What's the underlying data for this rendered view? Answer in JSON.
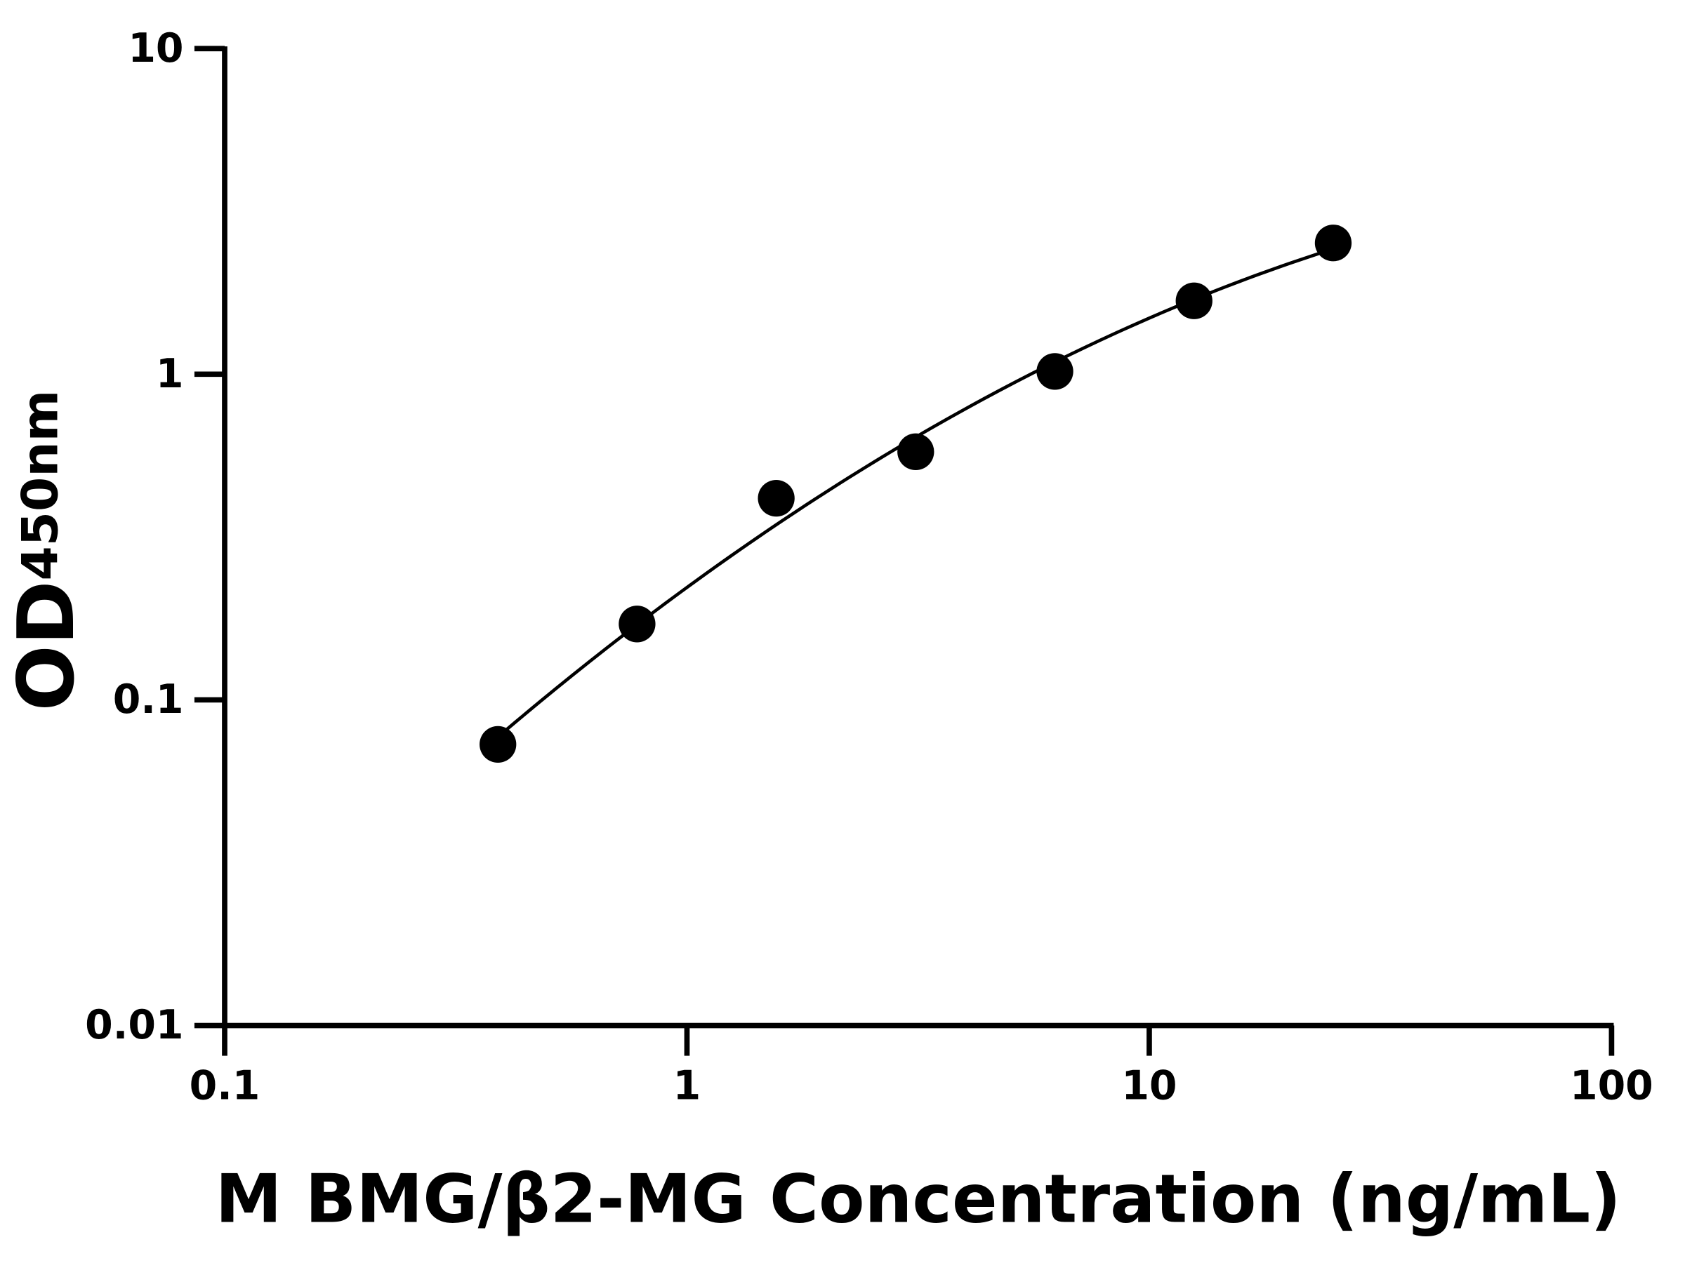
{
  "chart_data": {
    "type": "scatter",
    "x_label": "M BMG/β2-MG Concentration (ng/mL)",
    "y_label": {
      "main": "OD",
      "subscript": "450nm"
    },
    "x": [
      0.39,
      0.78,
      1.56,
      3.125,
      6.25,
      12.5,
      25
    ],
    "values": [
      0.073,
      0.171,
      0.416,
      0.578,
      1.02,
      1.68,
      2.53
    ],
    "color": "#000000",
    "x_log": true,
    "y_log": true,
    "fit_curve": true,
    "xlim": [
      0.1,
      100
    ],
    "xticks": [
      0.1,
      1,
      10,
      100
    ],
    "ylim": [
      0.01,
      10
    ],
    "yticks": [
      0.01,
      0.1,
      1,
      10
    ]
  }
}
